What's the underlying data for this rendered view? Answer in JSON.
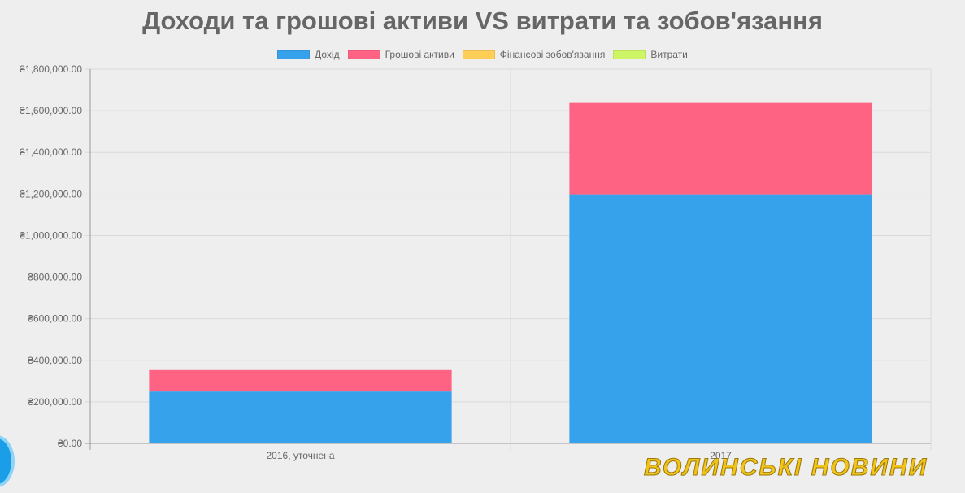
{
  "chart_data": {
    "type": "bar",
    "stacked": true,
    "title": "Доходи та грошові активи VS витрати та зобов'язання",
    "categories": [
      "2016, уточнена",
      "2017"
    ],
    "series": [
      {
        "name": "Дохід",
        "color": "#36a2eb",
        "values": [
          250000,
          1195000
        ]
      },
      {
        "name": "Грошові активи",
        "color": "#ff6384",
        "values": [
          103000,
          446000
        ]
      },
      {
        "name": "Фінансові зобов'язання",
        "color": "#ffce56",
        "values": [
          0,
          0
        ]
      },
      {
        "name": "Витрати",
        "color": "#cdf565",
        "values": [
          0,
          0
        ]
      }
    ],
    "ylim": [
      0,
      1800000
    ],
    "yticks": [
      0,
      200000,
      400000,
      600000,
      800000,
      1000000,
      1200000,
      1400000,
      1600000,
      1800000
    ],
    "ytick_labels": [
      "₴0.00",
      "₴200,000.00",
      "₴400,000.00",
      "₴600,000.00",
      "₴800,000.00",
      "₴1,000,000.00",
      "₴1,200,000.00",
      "₴1,400,000.00",
      "₴1,600,000.00",
      "₴1,800,000.00"
    ],
    "grid": true,
    "legend_position": "top"
  },
  "watermark": "ВОЛИНСЬКІ НОВИНИ"
}
